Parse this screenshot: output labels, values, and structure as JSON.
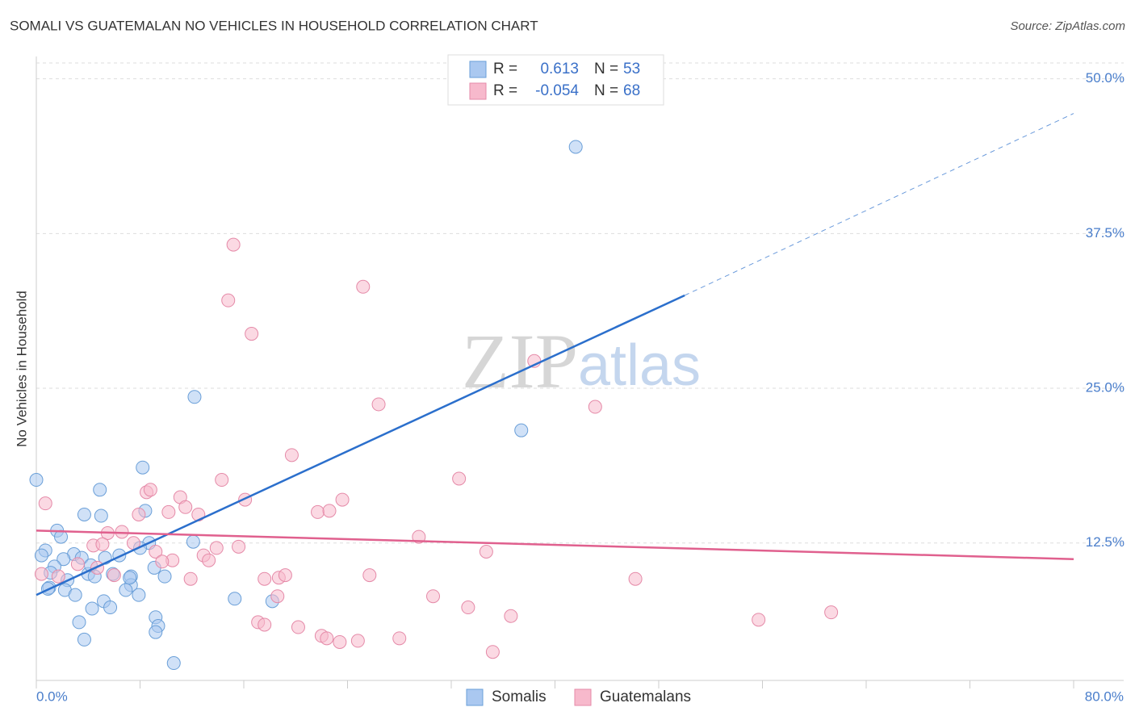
{
  "chart_data": {
    "type": "scatter",
    "title": "SOMALI VS GUATEMALAN NO VEHICLES IN HOUSEHOLD CORRELATION CHART",
    "source": "Source: ZipAtlas.com",
    "ylabel": "No Vehicles in Household",
    "watermark": [
      "ZIP",
      "atlas"
    ],
    "legend_labels": {
      "r": "R =",
      "n": "N ="
    },
    "xlim": [
      0,
      80
    ],
    "ylim": [
      1.4,
      51.8
    ],
    "xticks": [
      {
        "value": 0,
        "label": "0.0%"
      },
      {
        "value": 8,
        "label": null
      },
      {
        "value": 16,
        "label": null
      },
      {
        "value": 24,
        "label": null
      },
      {
        "value": 32,
        "label": null
      },
      {
        "value": 40,
        "label": null
      },
      {
        "value": 48,
        "label": null
      },
      {
        "value": 56,
        "label": null
      },
      {
        "value": 64,
        "label": null
      },
      {
        "value": 72,
        "label": null
      },
      {
        "value": 80,
        "label": "80.0%"
      }
    ],
    "yticks": [
      {
        "value": 12.5,
        "label": "12.5%"
      },
      {
        "value": 25,
        "label": "25.0%"
      },
      {
        "value": 37.5,
        "label": "37.5%"
      },
      {
        "value": 50,
        "label": "50.0%"
      }
    ],
    "grid": true,
    "series": [
      {
        "name": "Somalis",
        "color": "#aac8f0",
        "stroke": "#6a9fd8",
        "line_color": "#2b6fcc",
        "r": 0.613,
        "n": 53,
        "x": [
          0,
          41.6,
          12.2,
          37.4,
          8.2,
          4.9,
          3.7,
          5.0,
          8.4,
          1.6,
          1.9,
          0.7,
          0.4,
          2.9,
          2.1,
          3.5,
          5.3,
          6.4,
          8.7,
          8.0,
          12.1,
          1.4,
          1.1,
          2.4,
          4.0,
          4.5,
          5.9,
          7.3,
          9.1,
          9.9,
          1.0,
          2.2,
          3.0,
          7.3,
          5.2,
          6.9,
          7.9,
          4.3,
          5.7,
          15.3,
          18.2,
          3.3,
          9.2,
          9.4,
          9.2,
          3.7,
          10.6,
          0.9,
          7.2,
          4.2
        ],
        "values": [
          17.6,
          44.5,
          24.3,
          21.6,
          18.6,
          16.8,
          14.8,
          14.7,
          15.1,
          13.5,
          13.0,
          11.9,
          11.5,
          11.6,
          11.2,
          11.3,
          11.3,
          11.5,
          12.5,
          12.1,
          12.6,
          10.6,
          10.1,
          9.5,
          10.0,
          9.8,
          10.0,
          9.8,
          10.5,
          9.8,
          8.9,
          8.7,
          8.3,
          9.1,
          7.8,
          8.7,
          8.3,
          7.2,
          7.3,
          8.0,
          7.8,
          6.1,
          6.5,
          5.8,
          5.3,
          4.7,
          2.8,
          8.8,
          9.7,
          10.7
        ],
        "trend": {
          "x": [
            0,
            50
          ],
          "values": [
            8.3,
            32.5
          ]
        },
        "trend_extension": {
          "x": [
            50,
            80
          ],
          "values": [
            32.5,
            47.2
          ]
        }
      },
      {
        "name": "Guatemalans",
        "color": "#f7b9cc",
        "stroke": "#e58aa8",
        "line_color": "#e0608e",
        "r": -0.054,
        "n": 68,
        "x": [
          15.2,
          14.8,
          25.2,
          16.6,
          38.4,
          26.4,
          43.1,
          19.7,
          32.6,
          14.3,
          8.5,
          8.8,
          11.1,
          16.1,
          23.6,
          0.7,
          11.5,
          10.2,
          12.5,
          21.7,
          22.6,
          7.9,
          6.6,
          5.5,
          29.5,
          7.5,
          4.4,
          5.1,
          15.6,
          13.9,
          34.7,
          9.2,
          12.9,
          13.3,
          10.5,
          9.7,
          3.2,
          4.7,
          1.7,
          6.0,
          0.4,
          11.9,
          17.6,
          18.7,
          19.2,
          25.7,
          46.2,
          30.6,
          18.6,
          33.3,
          36.6,
          61.3,
          55.7,
          17.1,
          17.6,
          20.2,
          22.0,
          22.4,
          23.4,
          24.8,
          28.0,
          35.2
        ],
        "values": [
          36.6,
          32.1,
          33.2,
          29.4,
          27.2,
          23.7,
          23.5,
          19.6,
          17.7,
          17.6,
          16.6,
          16.8,
          16.2,
          16.0,
          16.0,
          15.7,
          15.4,
          15.0,
          14.8,
          15.0,
          15.1,
          14.8,
          13.4,
          13.3,
          13.0,
          12.5,
          12.3,
          12.4,
          12.2,
          12.1,
          11.8,
          11.8,
          11.5,
          11.1,
          11.1,
          11.0,
          10.8,
          10.5,
          9.8,
          9.9,
          10.0,
          9.6,
          9.6,
          9.7,
          9.9,
          9.9,
          9.6,
          8.2,
          8.2,
          7.3,
          6.6,
          6.9,
          6.3,
          6.1,
          5.9,
          5.7,
          5.0,
          4.8,
          4.5,
          4.6,
          4.8,
          3.7
        ],
        "trend": {
          "x": [
            0,
            80
          ],
          "values": [
            13.5,
            11.2
          ]
        }
      }
    ]
  }
}
